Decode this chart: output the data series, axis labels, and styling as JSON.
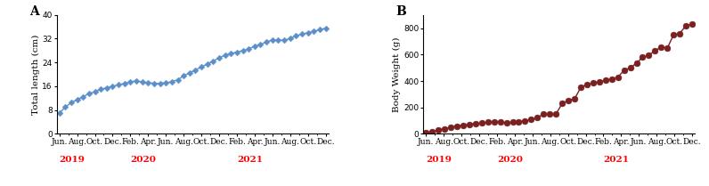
{
  "panel_A": {
    "label": "A",
    "ylabel": "Total length (cm)",
    "ylim": [
      0,
      40
    ],
    "yticks": [
      0,
      8,
      16,
      24,
      32,
      40
    ],
    "color": "#5B8FC9",
    "marker": "D",
    "markersize": 3.5,
    "linewidth": 1.0,
    "values": [
      7.0,
      9.0,
      10.5,
      11.5,
      12.5,
      13.5,
      14.2,
      15.0,
      15.5,
      16.0,
      16.5,
      17.0,
      17.5,
      17.8,
      17.5,
      17.2,
      17.0,
      17.0,
      17.2,
      17.5,
      18.2,
      19.5,
      20.5,
      21.5,
      22.5,
      23.5,
      24.5,
      25.5,
      26.5,
      27.0,
      27.5,
      28.0,
      28.5,
      29.5,
      30.0,
      31.0,
      31.5,
      31.5,
      31.5,
      32.0,
      33.0,
      33.5,
      34.0,
      34.5,
      35.0,
      35.5
    ]
  },
  "panel_B": {
    "label": "B",
    "ylabel": "Body Weight (g)",
    "ylim": [
      0,
      900
    ],
    "yticks": [
      0,
      200,
      400,
      600,
      800
    ],
    "color": "#7B2020",
    "marker": "o",
    "markersize": 5,
    "linewidth": 1.0,
    "values": [
      10,
      18,
      30,
      40,
      50,
      60,
      65,
      72,
      78,
      83,
      88,
      92,
      90,
      85,
      88,
      93,
      98,
      108,
      125,
      148,
      150,
      150,
      230,
      255,
      265,
      350,
      375,
      385,
      395,
      405,
      415,
      430,
      480,
      500,
      535,
      580,
      595,
      630,
      655,
      650,
      750,
      760,
      820,
      830
    ]
  },
  "months": [
    "Jun.",
    "Aug.",
    "Oct.",
    "Dec.",
    "Feb.",
    "Apr.",
    "Jun.",
    "Aug.",
    "Oct.",
    "Dec.",
    "Feb.",
    "Apr.",
    "Jun.",
    "Aug.",
    "Oct.",
    "Dec."
  ],
  "year_color": "#FF0000",
  "background_color": "#FFFFFF",
  "tick_fontsize": 6.5,
  "year_fontsize": 7.5,
  "panel_label_fontsize": 10
}
